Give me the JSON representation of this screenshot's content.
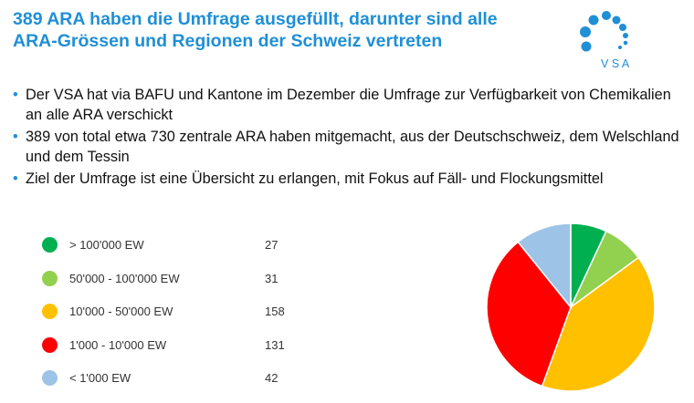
{
  "slide": {
    "title_line1": "389 ARA haben die Umfrage ausgefüllt, darunter sind alle",
    "title_line2": "ARA-Grössen und Regionen der Schweiz vertreten",
    "logo_text": "V S A",
    "bullet_marker": "•",
    "bullets": [
      "Der VSA hat via BAFU und Kantone im Dezember die Umfrage zur Verfügbarkeit von Chemikalien an alle ARA verschickt",
      "389 von total etwa 730 zentrale ARA haben mitgemacht, aus der Deutschschweiz, dem Welschland und dem Tessin",
      "Ziel der Umfrage ist eine Übersicht zu erlangen, mit Fokus auf Fäll- und Flockungsmittel"
    ]
  },
  "colors": {
    "title": "#1f8fd6",
    "logo": "#1f8fd6"
  },
  "chart_data": {
    "type": "pie",
    "categories": [
      "> 100'000 EW",
      "50'000 - 100'000 EW",
      "10'000 - 50'000 EW",
      "1'000 - 10'000 EW",
      "< 1'000 EW"
    ],
    "values": [
      27,
      31,
      158,
      131,
      42
    ],
    "value_labels": [
      "27",
      "31",
      "158",
      "131",
      "42"
    ],
    "colors": [
      "#00b050",
      "#92d050",
      "#ffc000",
      "#ff0000",
      "#9dc3e6"
    ],
    "legend_position": "left",
    "start_angle": "top, clockwise"
  }
}
